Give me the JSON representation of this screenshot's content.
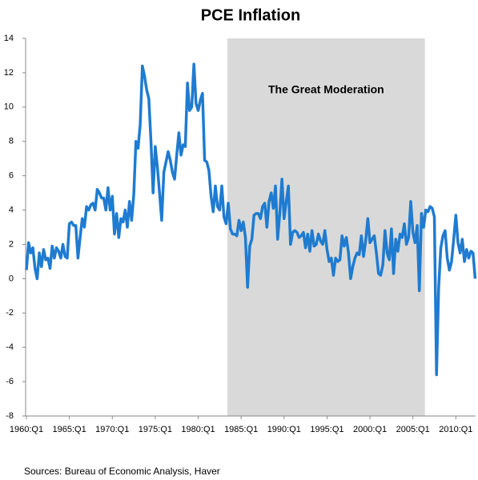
{
  "chart_data": {
    "type": "line",
    "title": "PCE Inflation",
    "source": "Sources:  Bureau of Economic Analysis, Haver",
    "shade": {
      "from": 1983.4,
      "to": 2006.4,
      "label": "The Great Moderation",
      "color": "#d9d9d9"
    },
    "xlim": [
      1960,
      2012.3
    ],
    "ylim": [
      -8,
      14
    ],
    "yticks": [
      -8,
      -6,
      -4,
      -2,
      0,
      2,
      4,
      6,
      8,
      10,
      12,
      14
    ],
    "xticks": [
      {
        "value": 1960,
        "label": "1960:Q1"
      },
      {
        "value": 1965,
        "label": "1965:Q1"
      },
      {
        "value": 1970,
        "label": "1970:Q1"
      },
      {
        "value": 1975,
        "label": "1975:Q1"
      },
      {
        "value": 1980,
        "label": "1980:Q1"
      },
      {
        "value": 1985,
        "label": "1985:Q1"
      },
      {
        "value": 1990,
        "label": "1990:Q1"
      },
      {
        "value": 1995,
        "label": "1995:Q1"
      },
      {
        "value": 2000,
        "label": "2000:Q1"
      },
      {
        "value": 2005,
        "label": "2005:Q1"
      },
      {
        "value": 2010,
        "label": "2010:Q1"
      }
    ],
    "color": "#1f7bd0",
    "x": [
      1960,
      1960.25,
      1960.5,
      1960.75,
      1961,
      1961.25,
      1961.5,
      1961.75,
      1962,
      1962.25,
      1962.5,
      1962.75,
      1963,
      1963.25,
      1963.5,
      1963.75,
      1964,
      1964.25,
      1964.5,
      1964.75,
      1965,
      1965.25,
      1965.5,
      1965.75,
      1966,
      1966.25,
      1966.5,
      1966.75,
      1967,
      1967.25,
      1967.5,
      1967.75,
      1968,
      1968.25,
      1968.5,
      1968.75,
      1969,
      1969.25,
      1969.5,
      1969.75,
      1970,
      1970.25,
      1970.5,
      1970.75,
      1971,
      1971.25,
      1971.5,
      1971.75,
      1972,
      1972.25,
      1972.5,
      1972.75,
      1973,
      1973.25,
      1973.5,
      1973.75,
      1974,
      1974.25,
      1974.5,
      1974.75,
      1975,
      1975.25,
      1975.5,
      1975.75,
      1976,
      1976.25,
      1976.5,
      1976.75,
      1977,
      1977.25,
      1977.5,
      1977.75,
      1978,
      1978.25,
      1978.5,
      1978.75,
      1979,
      1979.25,
      1979.5,
      1979.75,
      1980,
      1980.25,
      1980.5,
      1980.75,
      1981,
      1981.25,
      1981.5,
      1981.75,
      1982,
      1982.25,
      1982.5,
      1982.75,
      1983,
      1983.25,
      1983.5,
      1983.75,
      1984,
      1984.25,
      1984.5,
      1984.75,
      1985,
      1985.25,
      1985.5,
      1985.75,
      1986,
      1986.25,
      1986.5,
      1986.75,
      1987,
      1987.25,
      1987.5,
      1987.75,
      1988,
      1988.25,
      1988.5,
      1988.75,
      1989,
      1989.25,
      1989.5,
      1989.75,
      1990,
      1990.25,
      1990.5,
      1990.75,
      1991,
      1991.25,
      1991.5,
      1991.75,
      1992,
      1992.25,
      1992.5,
      1992.75,
      1993,
      1993.25,
      1993.5,
      1993.75,
      1994,
      1994.25,
      1994.5,
      1994.75,
      1995,
      1995.25,
      1995.5,
      1995.75,
      1996,
      1996.25,
      1996.5,
      1996.75,
      1997,
      1997.25,
      1997.5,
      1997.75,
      1998,
      1998.25,
      1998.5,
      1998.75,
      1999,
      1999.25,
      1999.5,
      1999.75,
      2000,
      2000.25,
      2000.5,
      2000.75,
      2001,
      2001.25,
      2001.5,
      2001.75,
      2002,
      2002.25,
      2002.5,
      2002.75,
      2003,
      2003.25,
      2003.5,
      2003.75,
      2004,
      2004.25,
      2004.5,
      2004.75,
      2005,
      2005.25,
      2005.5,
      2005.75,
      2006,
      2006.25,
      2006.5,
      2006.75,
      2007,
      2007.25,
      2007.5,
      2007.75,
      2008,
      2008.25,
      2008.5,
      2008.75,
      2009,
      2009.25,
      2009.5,
      2009.75,
      2010,
      2010.25,
      2010.5,
      2010.75,
      2011,
      2011.25,
      2011.5,
      2011.75,
      2012,
      2012.25
    ],
    "values": [
      0.5,
      2.1,
      1.5,
      1.8,
      0.6,
      0,
      1.5,
      0.7,
      1.7,
      1.1,
      1.2,
      0.6,
      1.9,
      1.2,
      1.8,
      1.6,
      1.2,
      2.0,
      1.3,
      1.2,
      3.2,
      3.3,
      3.1,
      3.1,
      1.2,
      2.4,
      3.5,
      3.0,
      4.2,
      4.0,
      4.3,
      4.4,
      4.0,
      5.2,
      5.0,
      4.7,
      4.7,
      4.0,
      5.3,
      4.0,
      4.8,
      2.6,
      3.8,
      2.4,
      3.5,
      3.3,
      4.0,
      3.0,
      4.5,
      3.4,
      4.9,
      8.0,
      7.6,
      9.0,
      12.4,
      11.8,
      11.0,
      10.5,
      8.0,
      5.0,
      7.7,
      6.5,
      5.0,
      3.4,
      6.2,
      6.8,
      7.4,
      6.9,
      6.2,
      5.8,
      7.2,
      8.5,
      7.2,
      7.8,
      7.7,
      11.4,
      9.8,
      10.0,
      12.5,
      10.2,
      9.8,
      10.4,
      10.8,
      6.9,
      6.8,
      6.3,
      4.8,
      3.9,
      5.4,
      4.2,
      4.0,
      5.4,
      3.6,
      3.2,
      4.4,
      2.9,
      2.6,
      2.6,
      2.5,
      3.4,
      2.8,
      3.3,
      2.4,
      -0.5,
      1.9,
      2.3,
      3.7,
      3.8,
      3.8,
      3.5,
      4.2,
      4.4,
      3.0,
      4.5,
      5.0,
      4.1,
      5.4,
      2.3,
      3.8,
      5.8,
      3.5,
      4.5,
      5.4,
      2.0,
      2.7,
      2.8,
      2.7,
      2.4,
      2.5,
      2.7,
      1.8,
      2.6,
      1.6,
      2.8,
      1.9,
      2.0,
      2.6,
      2.2,
      2.0,
      2.8,
      1.7,
      1.0,
      1.2,
      0.2,
      1.2,
      1.0,
      1.1,
      2.5,
      1.9,
      2.4,
      1.5,
      0,
      0.7,
      1.2,
      1.5,
      1.4,
      2.5,
      1.3,
      2.2,
      3.5,
      2.1,
      2.3,
      2.5,
      1.5,
      0.3,
      0.2,
      0.8,
      2.8,
      1.5,
      1.1,
      2.9,
      0.3,
      2.3,
      1.6,
      2.6,
      2.4,
      3.2,
      2.0,
      2.4,
      4.5,
      2.7,
      2.1,
      3.1,
      -0.7,
      3.8,
      3.0,
      4.0,
      3.9,
      4.2,
      4.1,
      3.6,
      -5.6,
      -0.5,
      1.8,
      2.5,
      2.8,
      1.2,
      0.5,
      1.0,
      2.3,
      3.7,
      2.1,
      1.5,
      2.3,
      1.0,
      1.7,
      1.2,
      1.6,
      1.5,
      0.0
    ]
  }
}
